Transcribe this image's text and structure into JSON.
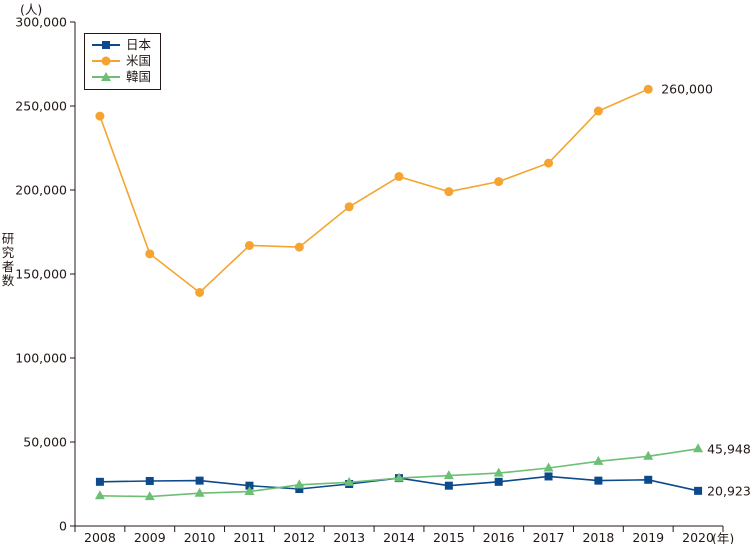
{
  "chart_data": {
    "type": "line",
    "y_unit_label": "(人)",
    "x_unit_label": "(年)",
    "ylabel": "研究者数",
    "ylim": [
      0,
      300000
    ],
    "y_ticks": [
      "0",
      "50,000",
      "100,000",
      "150,000",
      "200,000",
      "250,000",
      "300,000"
    ],
    "y_tick_values": [
      0,
      50000,
      100000,
      150000,
      200000,
      250000,
      300000
    ],
    "categories": [
      "2008",
      "2009",
      "2010",
      "2011",
      "2012",
      "2013",
      "2014",
      "2015",
      "2016",
      "2017",
      "2018",
      "2019",
      "2020"
    ],
    "legend_position": "top-left",
    "grid": false,
    "series": [
      {
        "name": "日本",
        "color": "#0d4a8c",
        "marker": "square",
        "values": [
          26300,
          26800,
          27000,
          24000,
          22000,
          25000,
          28500,
          24000,
          26300,
          29500,
          27000,
          27500,
          20923
        ],
        "end_label": "20,923"
      },
      {
        "name": "米国",
        "color": "#f5a431",
        "marker": "circle",
        "values": [
          244000,
          162000,
          139000,
          167000,
          166000,
          190000,
          208000,
          199000,
          205000,
          216000,
          247000,
          260000,
          null
        ],
        "end_label": "260,000"
      },
      {
        "name": "韓国",
        "color": "#6cbf74",
        "marker": "triangle",
        "values": [
          18000,
          17500,
          19500,
          20500,
          24500,
          26000,
          28500,
          30000,
          31500,
          34500,
          38500,
          41500,
          45948
        ],
        "end_label": "45,948"
      }
    ]
  }
}
